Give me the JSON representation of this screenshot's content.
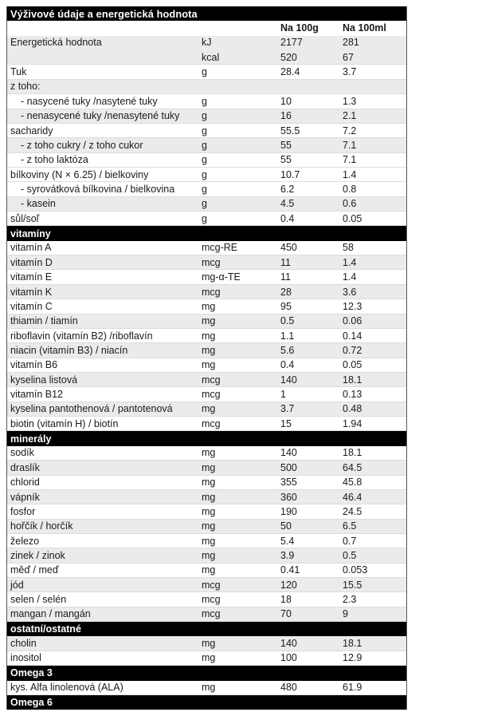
{
  "table": {
    "title": "Výživové údaje a energetická hodnota",
    "columns": {
      "per_100g": "Na 100g",
      "per_100ml": "Na 100ml"
    },
    "colors": {
      "section_bar": "#000000",
      "section_bar_text": "#ffffff",
      "shaded_row": "#ebebeb",
      "row_separator": "#dcdcdc",
      "text": "#1a1a1a"
    },
    "rows": [
      {
        "kind": "row",
        "label": "Energetická hodnota",
        "unit": "kJ",
        "per_100g": "2177",
        "per_100ml": "281",
        "shaded": true,
        "merged_with_next": true
      },
      {
        "kind": "row",
        "label": "",
        "unit": "kcal",
        "per_100g": "520",
        "per_100ml": "67",
        "shaded": true
      },
      {
        "kind": "row",
        "label": "Tuk",
        "unit": "g",
        "per_100g": "28.4",
        "per_100ml": "3.7"
      },
      {
        "kind": "row",
        "label": "z toho:",
        "unit": "",
        "per_100g": "",
        "per_100ml": "",
        "shaded": true
      },
      {
        "kind": "row",
        "label": "- nasycené tuky /nasytené tuky",
        "indent": true,
        "unit": "g",
        "per_100g": "10",
        "per_100ml": "1.3"
      },
      {
        "kind": "row",
        "label": "- nenasycené tuky /nenasytené tuky",
        "indent": true,
        "unit": "g",
        "per_100g": "16",
        "per_100ml": "2.1",
        "shaded": true
      },
      {
        "kind": "row",
        "label": "sacharidy",
        "unit": "g",
        "per_100g": "55.5",
        "per_100ml": "7.2"
      },
      {
        "kind": "row",
        "label": "- z toho cukry / z toho cukor",
        "indent": true,
        "unit": "g",
        "per_100g": "55",
        "per_100ml": "7.1",
        "shaded": true
      },
      {
        "kind": "row",
        "label": "- z toho laktóza",
        "indent": true,
        "unit": "g",
        "per_100g": "55",
        "per_100ml": "7.1"
      },
      {
        "kind": "row",
        "label": "bílkoviny (N × 6.25) / bielkoviny",
        "unit": "g",
        "per_100g": "10.7",
        "per_100ml": "1.4"
      },
      {
        "kind": "row",
        "label": "- syrovátková bílkovina / bielkovina",
        "indent": true,
        "unit": "g",
        "per_100g": "6.2",
        "per_100ml": "0.8"
      },
      {
        "kind": "row",
        "label": "- kasein",
        "indent": true,
        "unit": "g",
        "per_100g": "4.5",
        "per_100ml": "0.6",
        "shaded": true
      },
      {
        "kind": "row",
        "label": "sůl/soľ",
        "unit": "g",
        "per_100g": "0.4",
        "per_100ml": "0.05"
      },
      {
        "kind": "section",
        "label": "vitamíny"
      },
      {
        "kind": "row",
        "label": "vitamín A",
        "unit": "mcg-RE",
        "per_100g": "450",
        "per_100ml": "58"
      },
      {
        "kind": "row",
        "label": "vitamín D",
        "unit": "mcg",
        "per_100g": "11",
        "per_100ml": "1.4",
        "shaded": true
      },
      {
        "kind": "row",
        "label": "vitamín E",
        "unit": "mg-α-TE",
        "per_100g": "11",
        "per_100ml": "1.4"
      },
      {
        "kind": "row",
        "label": "vitamín K",
        "unit": "mcg",
        "per_100g": "28",
        "per_100ml": "3.6",
        "shaded": true
      },
      {
        "kind": "row",
        "label": "vitamín C",
        "unit": "mg",
        "per_100g": "95",
        "per_100ml": "12.3"
      },
      {
        "kind": "row",
        "label": "thiamin / tiamín",
        "unit": "mg",
        "per_100g": "0.5",
        "per_100ml": "0.06",
        "shaded": true
      },
      {
        "kind": "row",
        "label": "riboflavin (vitamín B2) /riboflavín",
        "unit": "mg",
        "per_100g": "1.1",
        "per_100ml": "0.14"
      },
      {
        "kind": "row",
        "label": "niacin (vitamín B3) / niacín",
        "unit": "mg",
        "per_100g": "5.6",
        "per_100ml": "0.72",
        "shaded": true
      },
      {
        "kind": "row",
        "label": "vitamín B6",
        "unit": "mg",
        "per_100g": "0.4",
        "per_100ml": "0.05"
      },
      {
        "kind": "row",
        "label": "kyselina listová",
        "unit": "mcg",
        "per_100g": "140",
        "per_100ml": "18.1",
        "shaded": true
      },
      {
        "kind": "row",
        "label": "vitamín B12",
        "unit": "mcg",
        "per_100g": "1",
        "per_100ml": "0.13"
      },
      {
        "kind": "row",
        "label": "kyselina pantothenová / pantotenová",
        "unit": "mg",
        "per_100g": "3.7",
        "per_100ml": "0.48",
        "shaded": true
      },
      {
        "kind": "row",
        "label": "biotin (vitamín H) / biotín",
        "unit": "mcg",
        "per_100g": "15",
        "per_100ml": "1.94"
      },
      {
        "kind": "section",
        "label": "minerály"
      },
      {
        "kind": "row",
        "label": "sodík",
        "unit": "mg",
        "per_100g": "140",
        "per_100ml": "18.1"
      },
      {
        "kind": "row",
        "label": "draslík",
        "unit": "mg",
        "per_100g": "500",
        "per_100ml": "64.5",
        "shaded": true
      },
      {
        "kind": "row",
        "label": "chlorid",
        "unit": "mg",
        "per_100g": "355",
        "per_100ml": "45.8"
      },
      {
        "kind": "row",
        "label": "vápník",
        "unit": "mg",
        "per_100g": "360",
        "per_100ml": "46.4",
        "shaded": true
      },
      {
        "kind": "row",
        "label": "fosfor",
        "unit": "mg",
        "per_100g": "190",
        "per_100ml": "24.5"
      },
      {
        "kind": "row",
        "label": "hořčík / horčík",
        "unit": "mg",
        "per_100g": "50",
        "per_100ml": "6.5",
        "shaded": true
      },
      {
        "kind": "row",
        "label": "železo",
        "unit": "mg",
        "per_100g": "5.4",
        "per_100ml": "0.7"
      },
      {
        "kind": "row",
        "label": "zinek / zinok",
        "unit": "mg",
        "per_100g": "3.9",
        "per_100ml": "0.5",
        "shaded": true
      },
      {
        "kind": "row",
        "label": "měď / meď",
        "unit": "mg",
        "per_100g": "0.41",
        "per_100ml": "0.053"
      },
      {
        "kind": "row",
        "label": "jód",
        "unit": "mcg",
        "per_100g": "120",
        "per_100ml": "15.5",
        "shaded": true
      },
      {
        "kind": "row",
        "label": "selen / selén",
        "unit": "mcg",
        "per_100g": "18",
        "per_100ml": "2.3"
      },
      {
        "kind": "row",
        "label": "mangan / mangán",
        "unit": "mcg",
        "per_100g": "70",
        "per_100ml": "9",
        "shaded": true
      },
      {
        "kind": "section",
        "label": "ostatní/ostatné"
      },
      {
        "kind": "row",
        "label": "cholin",
        "unit": "mg",
        "per_100g": "140",
        "per_100ml": "18.1",
        "shaded": true
      },
      {
        "kind": "row",
        "label": "inositol",
        "unit": "mg",
        "per_100g": "100",
        "per_100ml": "12.9"
      },
      {
        "kind": "section",
        "label": "Omega 3"
      },
      {
        "kind": "row",
        "label": "kys. Alfa linolenová (ALA)",
        "unit": "mg",
        "per_100g": "480",
        "per_100ml": "61.9"
      },
      {
        "kind": "section",
        "label": "Omega 6"
      }
    ]
  }
}
